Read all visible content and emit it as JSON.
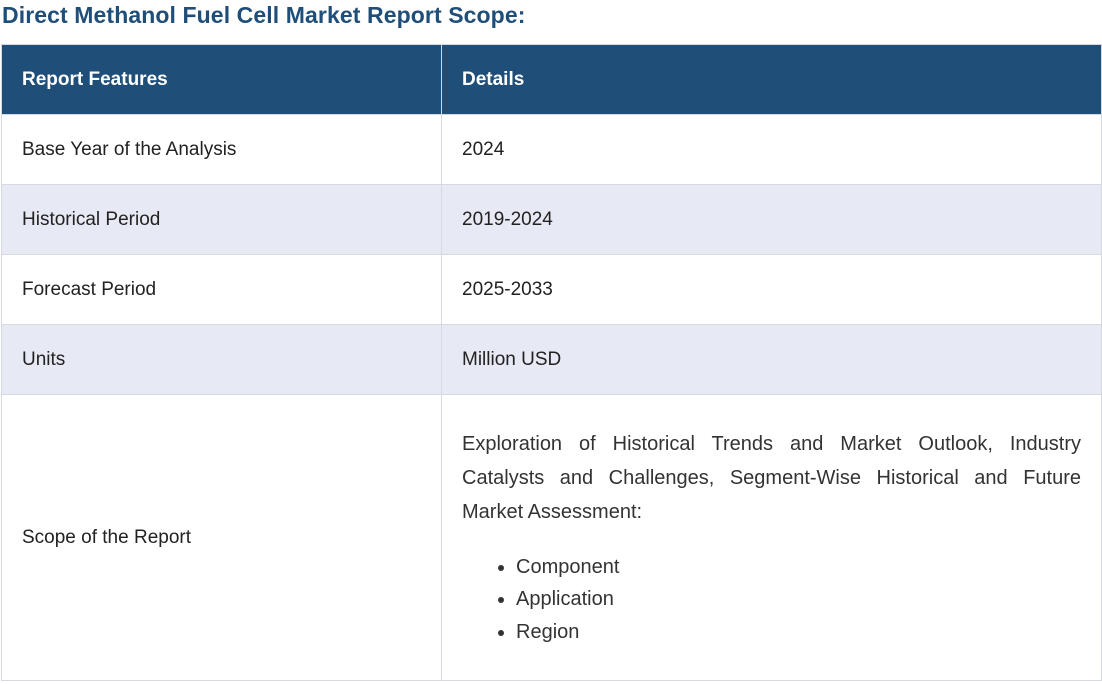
{
  "page": {
    "title": "Direct Methanol Fuel Cell Market Report Scope:"
  },
  "table": {
    "headers": [
      "Report Features",
      "Details"
    ],
    "rows": [
      {
        "feature": "Base Year of the Analysis",
        "detail": "2024"
      },
      {
        "feature": "Historical Period",
        "detail": "2019-2024"
      },
      {
        "feature": "Forecast Period",
        "detail": "2025-2033"
      },
      {
        "feature": "Units",
        "detail": "Million USD"
      }
    ],
    "scope": {
      "feature": "Scope of the Report",
      "description": "Exploration of Historical Trends and Market Outlook, Industry Catalysts and Challenges, Segment-Wise Historical and Future Market Assessment:",
      "items": [
        "Component",
        "Application",
        "Region"
      ]
    }
  },
  "colors": {
    "header_bg": "#1f4e79",
    "title": "#1f4e79",
    "alt_row_bg": "#e7e9f5"
  }
}
